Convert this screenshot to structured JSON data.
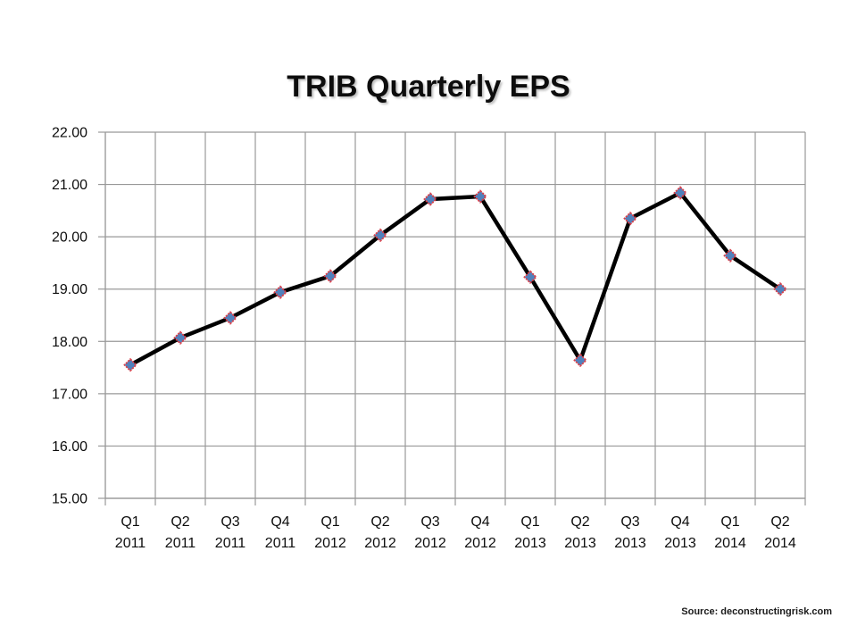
{
  "chart_data": {
    "type": "line",
    "title": "TRIB Quarterly EPS",
    "categories": [
      "Q1 2011",
      "Q2 2011",
      "Q3 2011",
      "Q4 2011",
      "Q1 2012",
      "Q2 2012",
      "Q3 2012",
      "Q4 2012",
      "Q1 2013",
      "Q2 2013",
      "Q3 2013",
      "Q4 2013",
      "Q1 2014",
      "Q2 2014"
    ],
    "values": [
      17.55,
      18.07,
      18.45,
      18.94,
      19.25,
      20.03,
      20.72,
      20.77,
      19.23,
      17.64,
      20.35,
      20.84,
      19.64,
      19.0
    ],
    "xlabel": "",
    "ylabel": "",
    "ylim": [
      15,
      22
    ],
    "ytick_step": 1,
    "ytick_decimals": 2,
    "grid": "both",
    "legend": "none",
    "marker": "diamond",
    "colors": {
      "line": "#000000",
      "marker_fill": "#4f81bd",
      "marker_border": "#d9404a",
      "gridline": "#999999",
      "axis": "#999999",
      "tick_text": "#0d0d0d"
    }
  },
  "source_note": "Source: deconstructingrisk.com"
}
